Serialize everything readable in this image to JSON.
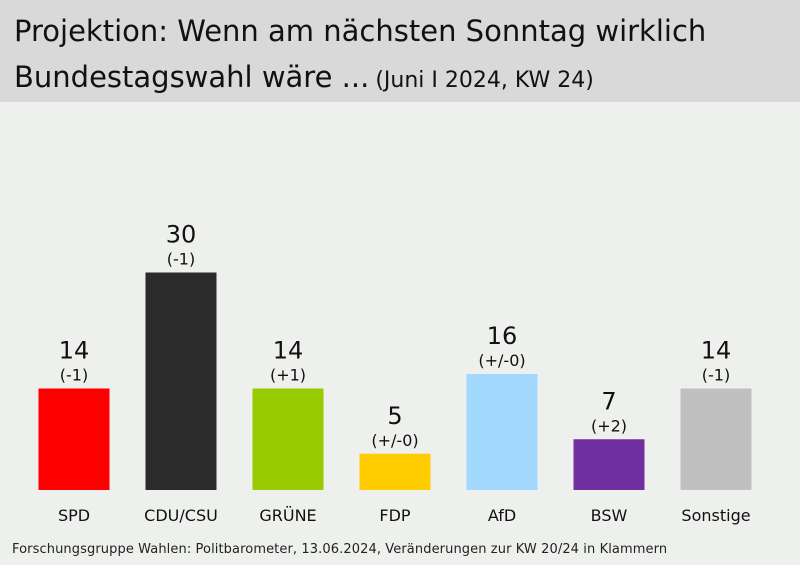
{
  "header": {
    "title_line1": "Projektion: Wenn am nächsten Sonntag wirklich",
    "title_line2": "Bundestagswahl wäre ...",
    "subtitle": "(Juni I 2024, KW 24)"
  },
  "chart_data": {
    "type": "bar",
    "title": "Projektion: Wenn am nächsten Sonntag wirklich Bundestagswahl wäre ...",
    "subtitle": "(Juni I 2024, KW 24)",
    "categories": [
      "SPD",
      "CDU/CSU",
      "GRÜNE",
      "FDP",
      "AfD",
      "BSW",
      "Sonstige"
    ],
    "values": [
      14,
      30,
      14,
      5,
      16,
      7,
      14
    ],
    "changes": [
      "(-1)",
      "(-1)",
      "(+1)",
      "(+/-0)",
      "(+/-0)",
      "(+2)",
      "(-1)"
    ],
    "colors": [
      "#ff0000",
      "#2b2b2b",
      "#99cc00",
      "#ffcc00",
      "#a3d9ff",
      "#7030a0",
      "#c0c0c0"
    ],
    "ylim": [
      0,
      30
    ],
    "grid": false,
    "legend": "none"
  },
  "footer": {
    "source": "Forschungsgruppe Wahlen: Politbarometer, 13.06.2024, Veränderungen zur KW 20/24 in Klammern"
  }
}
